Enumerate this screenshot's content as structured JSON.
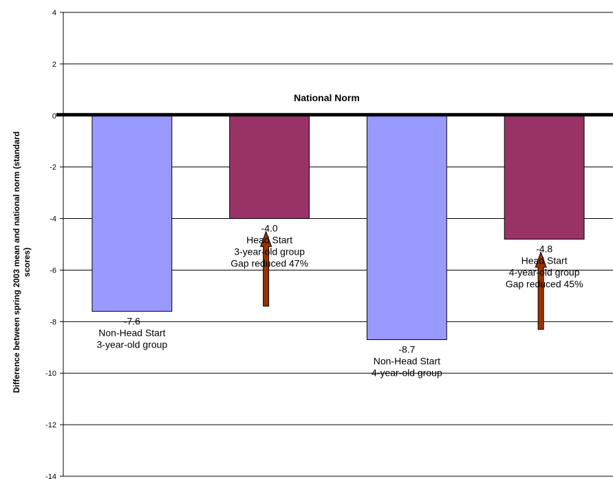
{
  "chart_data": {
    "type": "bar",
    "ylabel": "Difference between spring 2003 mean and national norm (standard scores)",
    "ylabel_lines": [
      "Difference between spring 2003 mean and national norm (standard",
      "scores)"
    ],
    "ylim": [
      -14,
      4
    ],
    "yticks": [
      4,
      2,
      0,
      -2,
      -4,
      -6,
      -8,
      -10,
      -12,
      -14
    ],
    "grid": true,
    "reference_line": {
      "value": 0,
      "label": "National Norm"
    },
    "categories": [
      "Non-Head Start 3-year-old group",
      "Head Start 3-year-old group",
      "Non-Head Start 4-year-old group",
      "Head Start 4-year-old group"
    ],
    "values": [
      -7.6,
      -4.0,
      -8.7,
      -4.8
    ],
    "bar_colors": [
      "#9999ff",
      "#993366",
      "#9999ff",
      "#993366"
    ],
    "arrow_color": "#993300",
    "arrows": [
      {
        "bar": 1,
        "from": -7.4,
        "to": -4.5
      },
      {
        "bar": 3,
        "from": -8.3,
        "to": -5.3
      }
    ],
    "annotations": [
      {
        "bar": 0,
        "lines": [
          "-7.6",
          "Non-Head Start",
          "3-year-old group"
        ]
      },
      {
        "bar": 1,
        "lines": [
          "-4.0",
          "Head Start",
          "3-year-old group",
          "Gap reduced 47%"
        ]
      },
      {
        "bar": 2,
        "lines": [
          "-8.7",
          "Non-Head Start",
          "4-year-old group"
        ]
      },
      {
        "bar": 3,
        "lines": [
          "-4.8",
          "Head Start",
          "4-year-old group",
          "Gap reduced 45%"
        ]
      }
    ]
  }
}
